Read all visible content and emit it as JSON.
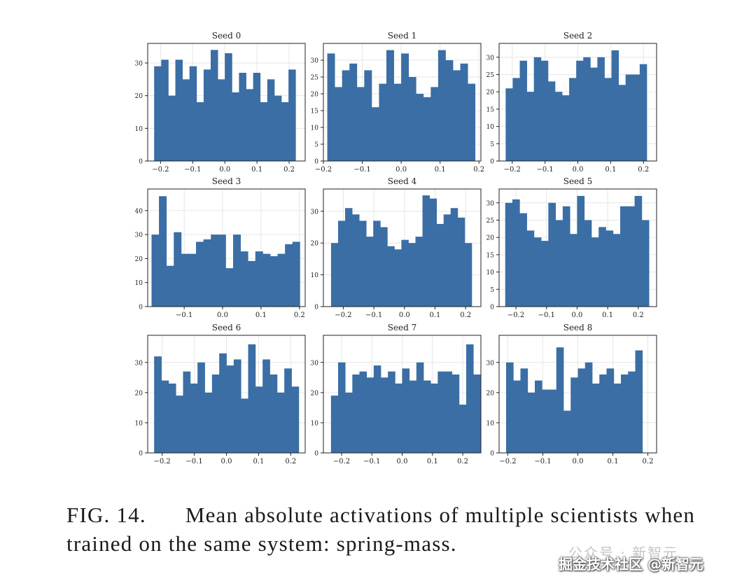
{
  "caption": {
    "label": "FIG. 14.",
    "text": "Mean absolute activations of multiple scientists when trained on the same system: spring-mass."
  },
  "watermark": {
    "faint": "公众号 · 新智元",
    "main": "掘金技术社区 @新智元"
  },
  "colors": {
    "bar": "#3a6ea5",
    "grid": "#e6e6e6",
    "axis": "#222222"
  },
  "chart_data": [
    {
      "type": "bar",
      "title": "Seed 0",
      "xlim": [
        -0.24,
        0.25
      ],
      "ylim": [
        0,
        36
      ],
      "xticks": [
        -0.2,
        -0.1,
        0.0,
        0.1,
        0.2
      ],
      "xticklabels": [
        "−0.2",
        "−0.1",
        "0.0",
        "0.1",
        "0.2"
      ],
      "yticks": [
        0,
        10,
        20,
        30
      ],
      "bin_start": -0.22,
      "bin_width": 0.022,
      "values": [
        29,
        31,
        20,
        31,
        25,
        29,
        18,
        28,
        34,
        25,
        33,
        21,
        27,
        22,
        27,
        18,
        25,
        20,
        18,
        28
      ]
    },
    {
      "type": "bar",
      "title": "Seed 1",
      "xlim": [
        -0.2,
        0.205
      ],
      "ylim": [
        0,
        35
      ],
      "xticks": [
        -0.2,
        -0.1,
        0.0,
        0.1,
        0.2
      ],
      "xticklabels": [
        "−0.2",
        "−0.1",
        "0.0",
        "0.1",
        "0.2"
      ],
      "yticks": [
        0,
        5,
        10,
        15,
        20,
        25,
        30
      ],
      "bin_start": -0.19,
      "bin_width": 0.019,
      "values": [
        32,
        22,
        27,
        29,
        22,
        27,
        16,
        23,
        33,
        23,
        32,
        25,
        20,
        19,
        22,
        33,
        30,
        27,
        29,
        23
      ]
    },
    {
      "type": "bar",
      "title": "Seed 2",
      "xlim": [
        -0.24,
        0.24
      ],
      "ylim": [
        0,
        34
      ],
      "xticks": [
        -0.2,
        -0.1,
        0.0,
        0.1,
        0.2
      ],
      "xticklabels": [
        "−0.2",
        "−0.1",
        "0.0",
        "0.1",
        "0.2"
      ],
      "yticks": [
        0,
        5,
        10,
        15,
        20,
        25,
        30
      ],
      "bin_start": -0.22,
      "bin_width": 0.0215,
      "values": [
        21,
        24,
        29,
        20,
        30,
        29,
        23,
        20,
        19,
        24,
        29,
        30,
        27,
        30,
        24,
        32,
        22,
        25,
        25,
        28
      ]
    },
    {
      "type": "bar",
      "title": "Seed 3",
      "xlim": [
        -0.195,
        0.215
      ],
      "ylim": [
        0,
        49
      ],
      "xticks": [
        -0.1,
        0.0,
        0.1,
        0.2
      ],
      "xticklabels": [
        "−0.1",
        "0.0",
        "0.1",
        "0.2"
      ],
      "yticks": [
        0,
        10,
        20,
        30,
        40
      ],
      "bin_start": -0.185,
      "bin_width": 0.0193,
      "values": [
        30,
        46,
        17,
        31,
        22,
        22,
        27,
        28,
        30,
        30,
        16,
        30,
        23,
        19,
        23,
        22,
        21,
        22,
        26,
        27
      ]
    },
    {
      "type": "bar",
      "title": "Seed 4",
      "xlim": [
        -0.265,
        0.25
      ],
      "ylim": [
        0,
        37
      ],
      "xticks": [
        -0.2,
        -0.1,
        0.0,
        0.1,
        0.2
      ],
      "xticklabels": [
        "−0.2",
        "−0.1",
        "0.0",
        "0.1",
        "0.2"
      ],
      "yticks": [
        0,
        10,
        20,
        30
      ],
      "bin_start": -0.24,
      "bin_width": 0.023,
      "values": [
        20,
        27,
        31,
        29,
        27,
        22,
        27,
        25,
        19,
        18,
        21,
        20,
        22,
        35,
        34,
        26,
        29,
        31,
        28,
        20
      ]
    },
    {
      "type": "bar",
      "title": "Seed 5",
      "xlim": [
        -0.255,
        0.26
      ],
      "ylim": [
        0,
        34
      ],
      "xticks": [
        -0.2,
        -0.1,
        0.0,
        0.1,
        0.2
      ],
      "xticklabels": [
        "−0.2",
        "−0.1",
        "0.0",
        "0.1",
        "0.2"
      ],
      "yticks": [
        0,
        5,
        10,
        15,
        20,
        25,
        30
      ],
      "bin_start": -0.235,
      "bin_width": 0.0235,
      "values": [
        30,
        31,
        27,
        22,
        20,
        19,
        30,
        25,
        29,
        21,
        32,
        25,
        20,
        23,
        22,
        21,
        29,
        29,
        32,
        25
      ]
    },
    {
      "type": "bar",
      "title": "Seed 6",
      "xlim": [
        -0.245,
        0.245
      ],
      "ylim": [
        0,
        39
      ],
      "xticks": [
        -0.2,
        -0.1,
        0.0,
        0.1,
        0.2
      ],
      "xticklabels": [
        "−0.2",
        "−0.1",
        "0.0",
        "0.1",
        "0.2"
      ],
      "yticks": [
        0,
        10,
        20,
        30
      ],
      "bin_start": -0.225,
      "bin_width": 0.0225,
      "values": [
        32,
        24,
        23,
        19,
        27,
        23,
        30,
        20,
        26,
        33,
        29,
        31,
        18,
        36,
        22,
        31,
        26,
        20,
        28,
        22
      ]
    },
    {
      "type": "bar",
      "title": "Seed 7",
      "xlim": [
        -0.26,
        0.26
      ],
      "ylim": [
        0,
        39
      ],
      "xticks": [
        -0.2,
        -0.1,
        0.0,
        0.1,
        0.2
      ],
      "xticklabels": [
        "−0.2",
        "−0.1",
        "0.0",
        "0.1",
        "0.2"
      ],
      "yticks": [
        0,
        10,
        20,
        30
      ],
      "bin_start": -0.235,
      "bin_width": 0.0235,
      "values": [
        19,
        30,
        20,
        26,
        27,
        25,
        29,
        25,
        27,
        23,
        28,
        24,
        30,
        24,
        23,
        27,
        27,
        26,
        16,
        36,
        26
      ]
    },
    {
      "type": "bar",
      "title": "Seed 8",
      "xlim": [
        -0.225,
        0.225
      ],
      "ylim": [
        0,
        39
      ],
      "xticks": [
        -0.2,
        -0.1,
        0.0,
        0.1,
        0.2
      ],
      "xticklabels": [
        "−0.2",
        "−0.1",
        "0.0",
        "0.1",
        "0.2"
      ],
      "yticks": [
        0,
        10,
        20,
        30
      ],
      "bin_start": -0.205,
      "bin_width": 0.0205,
      "values": [
        30,
        24,
        28,
        20,
        24,
        21,
        21,
        35,
        14,
        25,
        28,
        30,
        23,
        26,
        28,
        23,
        26,
        27,
        34
      ]
    }
  ]
}
